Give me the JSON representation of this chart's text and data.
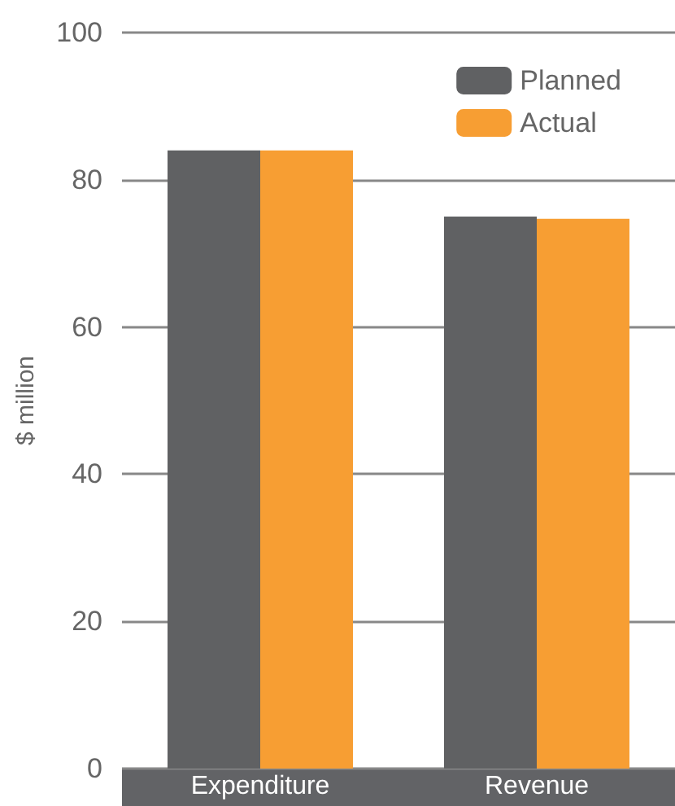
{
  "chart_data": {
    "type": "bar",
    "ylabel": "$ million",
    "categories": [
      "Expenditure",
      "Revenue"
    ],
    "series": [
      {
        "name": "Planned",
        "color": "#606163",
        "values": [
          84,
          75
        ]
      },
      {
        "name": "Actual",
        "color": "#f79e33",
        "values": [
          84,
          74.7
        ]
      }
    ],
    "ylim": [
      0,
      100
    ],
    "yticks": [
      0,
      20,
      40,
      60,
      80,
      100
    ],
    "grid": "y",
    "legend": "top right"
  }
}
